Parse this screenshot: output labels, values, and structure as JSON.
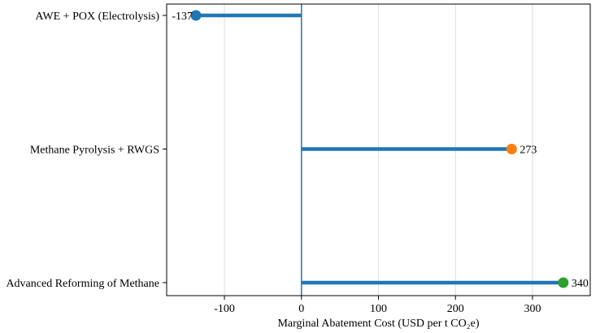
{
  "chart_data": {
    "type": "lollipop",
    "orientation": "horizontal",
    "title": "",
    "xlabel": "Marginal Abatement Cost (USD per t CO₂e)",
    "ylabel": "",
    "xlim": [
      -175,
      375
    ],
    "xticks": [
      -100,
      0,
      100,
      200,
      300
    ],
    "x_grid": true,
    "reference_line_x": 0,
    "categories": [
      "AWE + POX (Electrolysis)",
      "Methane Pyrolysis + RWGS",
      "Advanced Reforming of Methane"
    ],
    "values": [
      -137,
      273,
      340
    ],
    "value_labels": [
      "-137",
      "273",
      "340"
    ],
    "stem_color": "#1f77b4",
    "marker_colors": [
      "#1f77b4",
      "#ff7f0e",
      "#2ca02c"
    ],
    "reference_line_color": "#1f77b4",
    "grid_color": "#dddddd"
  }
}
